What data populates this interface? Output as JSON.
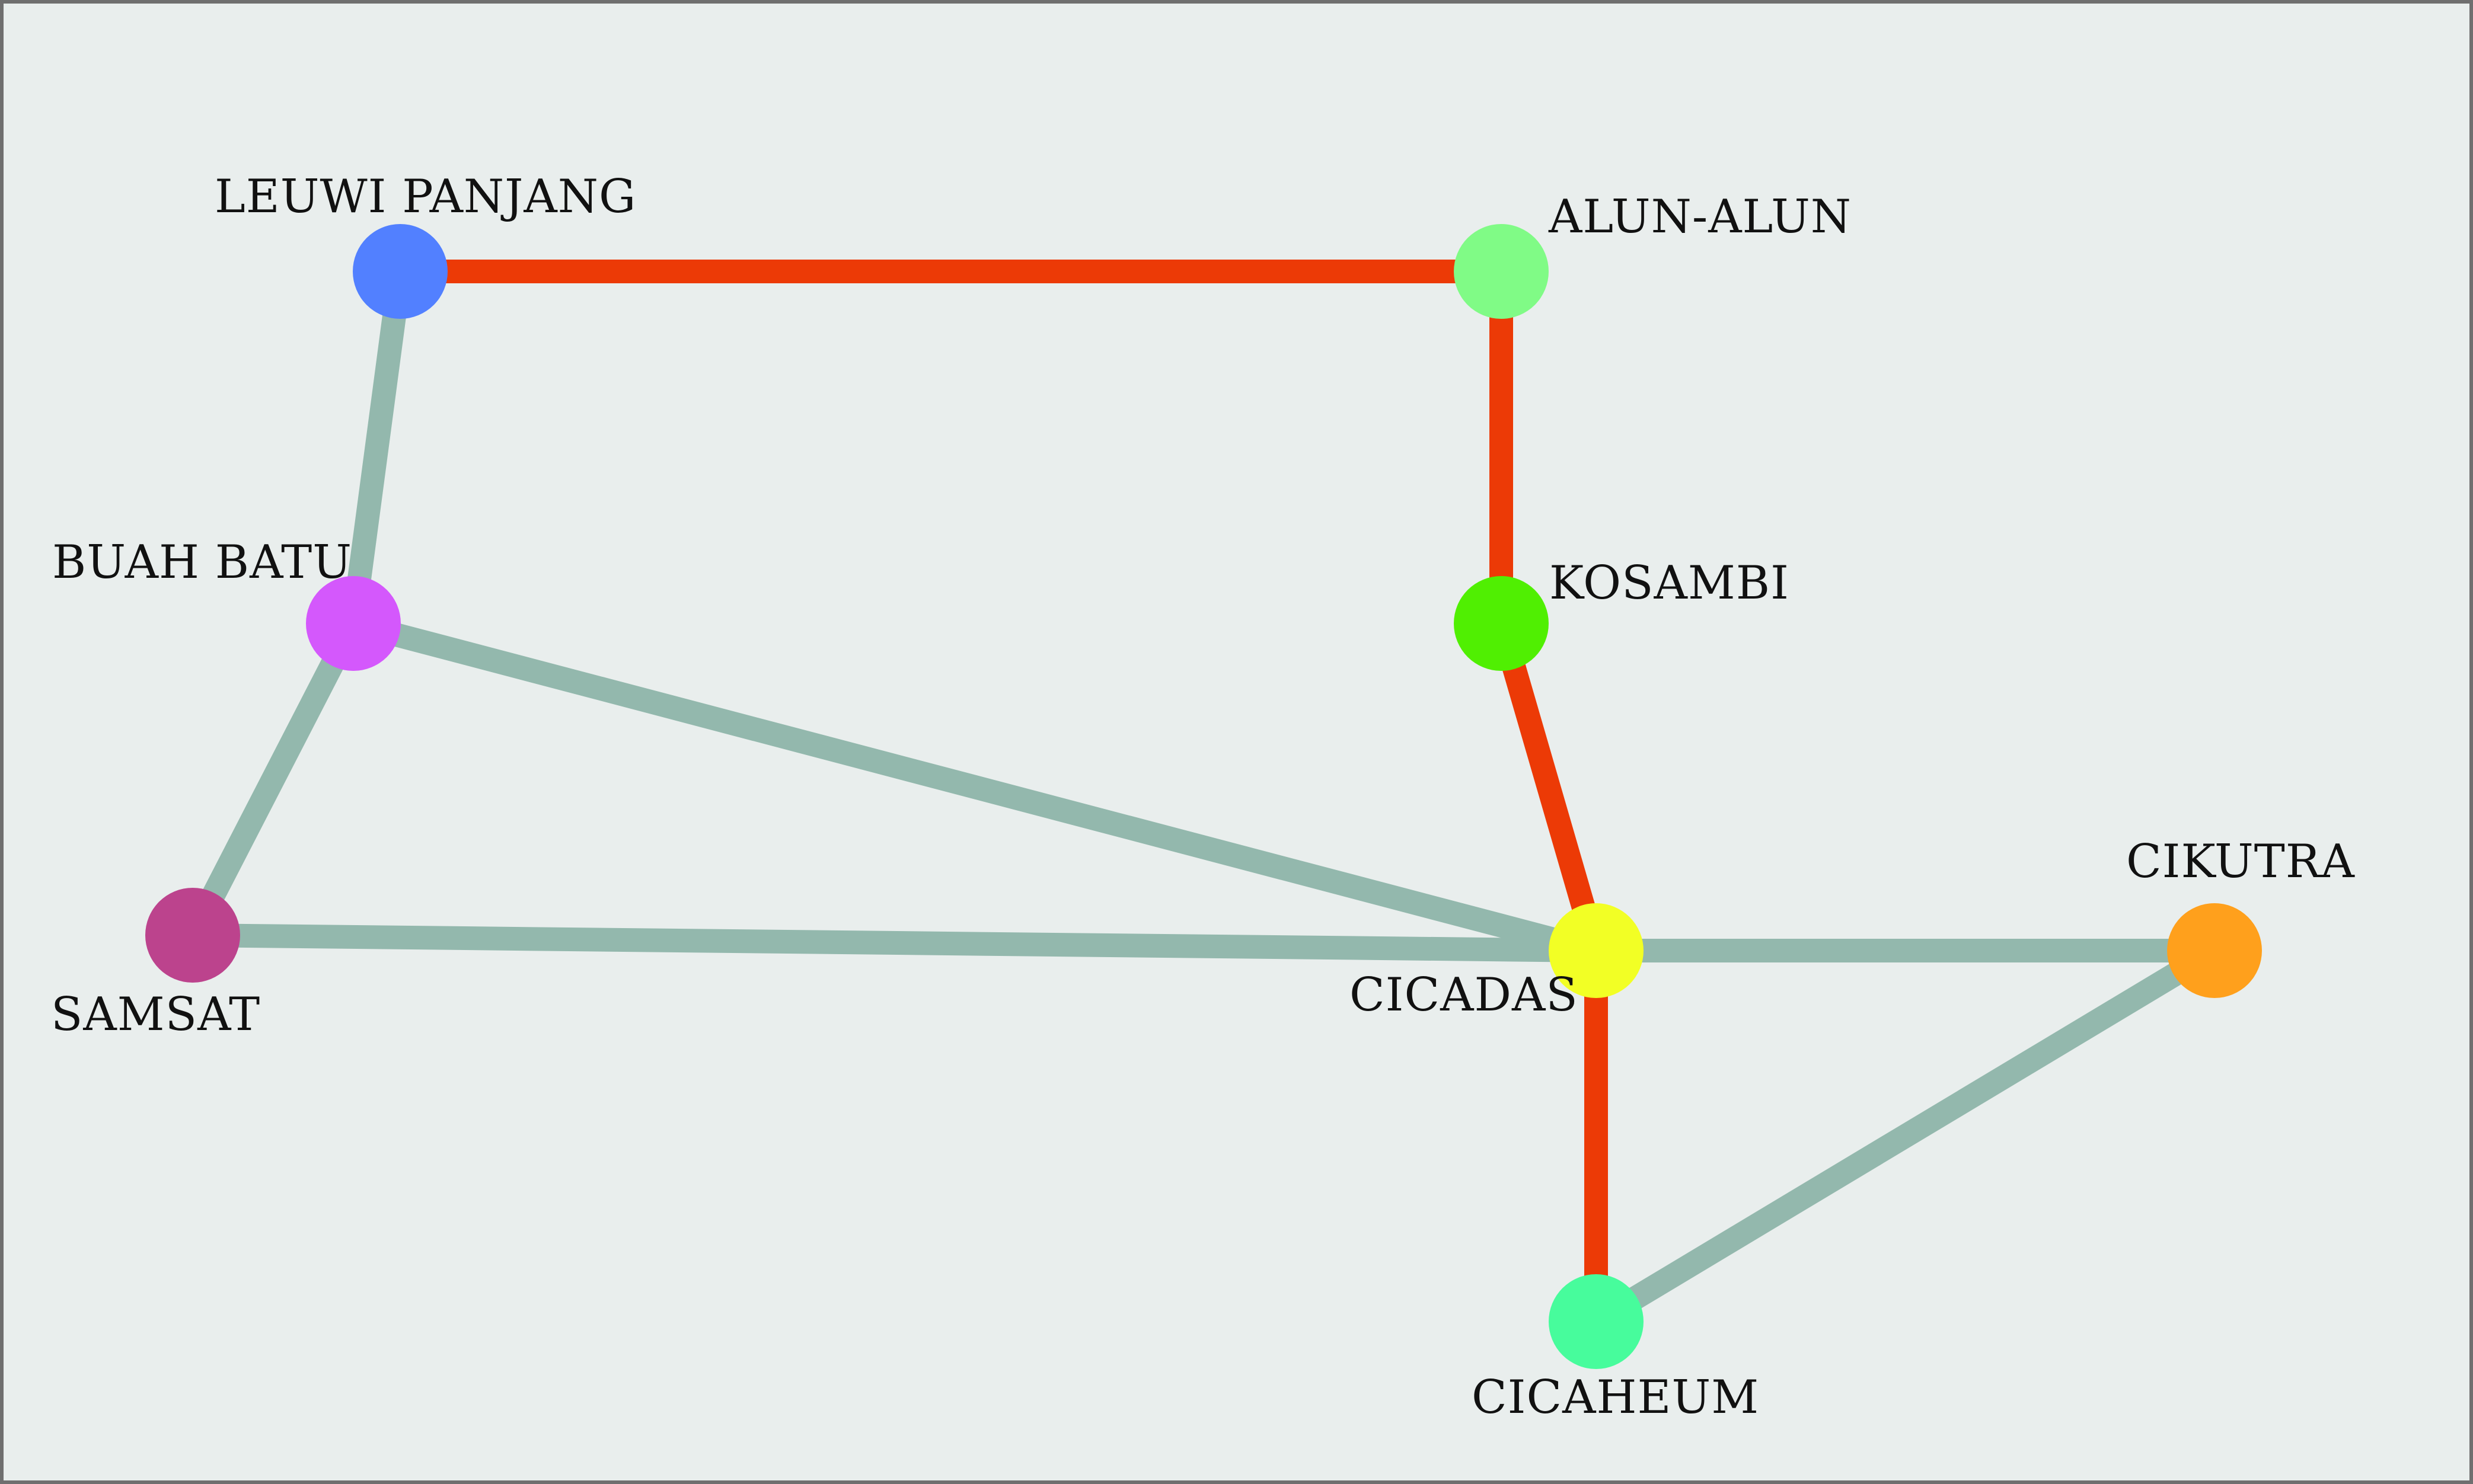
{
  "diagram": {
    "colors": {
      "background": "#e9eeed",
      "border": "#6f6f6f",
      "route_primary": "#ec3a06",
      "route_secondary": "#93b8ad",
      "label": "#111111"
    },
    "nodes": [
      {
        "id": "leuwi-panjang",
        "label": "LEUWI PANJANG",
        "color": "#5280ff"
      },
      {
        "id": "alun-alun",
        "label": "ALUN-ALUN",
        "color": "#80fb86"
      },
      {
        "id": "buah-batu",
        "label": "BUAH BATU",
        "color": "#d458fc"
      },
      {
        "id": "kosambi",
        "label": "KOSAMBI",
        "color": "#50ef02"
      },
      {
        "id": "samsat",
        "label": "SAMSAT",
        "color": "#bc438d"
      },
      {
        "id": "cicadas",
        "label": "CICADAS",
        "color": "#f2ff25"
      },
      {
        "id": "cikutra",
        "label": "CIKUTRA",
        "color": "#ffa01c"
      },
      {
        "id": "cicaheum",
        "label": "CICAHEUM",
        "color": "#47fc9c"
      }
    ],
    "edges": [
      {
        "from": "leuwi-panjang",
        "to": "alun-alun",
        "type": "primary"
      },
      {
        "from": "alun-alun",
        "to": "kosambi",
        "type": "primary"
      },
      {
        "from": "kosambi",
        "to": "cicadas",
        "type": "primary"
      },
      {
        "from": "cicadas",
        "to": "cicaheum",
        "type": "primary"
      },
      {
        "from": "leuwi-panjang",
        "to": "buah-batu",
        "type": "secondary"
      },
      {
        "from": "buah-batu",
        "to": "samsat",
        "type": "secondary"
      },
      {
        "from": "buah-batu",
        "to": "cicadas",
        "type": "secondary"
      },
      {
        "from": "samsat",
        "to": "cicadas",
        "type": "secondary"
      },
      {
        "from": "cicadas",
        "to": "cikutra",
        "type": "secondary"
      },
      {
        "from": "cikutra",
        "to": "cicaheum",
        "type": "secondary"
      }
    ]
  }
}
